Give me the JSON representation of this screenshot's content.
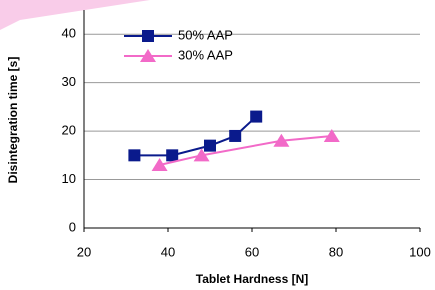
{
  "chart_data": {
    "type": "line",
    "x_label": "Tablet Hardness [N]",
    "y_label": "Disintegration time  [s]",
    "xlim": [
      20,
      100
    ],
    "xticks": [
      20,
      40,
      60,
      80,
      100
    ],
    "ylim": [
      0,
      45
    ],
    "yticks": [
      0,
      10,
      20,
      30,
      40
    ],
    "grid": true,
    "legend": "upper left",
    "series": [
      {
        "name": "50% AAP",
        "color": "#0a1a8c",
        "marker": "square",
        "x": [
          32,
          41,
          50,
          56,
          61
        ],
        "values": [
          15,
          15,
          17,
          19,
          23
        ]
      },
      {
        "name": "30% AAP",
        "color": "#f26ac8",
        "marker": "triangle",
        "x": [
          38,
          48,
          67,
          79
        ],
        "values": [
          13,
          15,
          18,
          19
        ]
      }
    ]
  }
}
